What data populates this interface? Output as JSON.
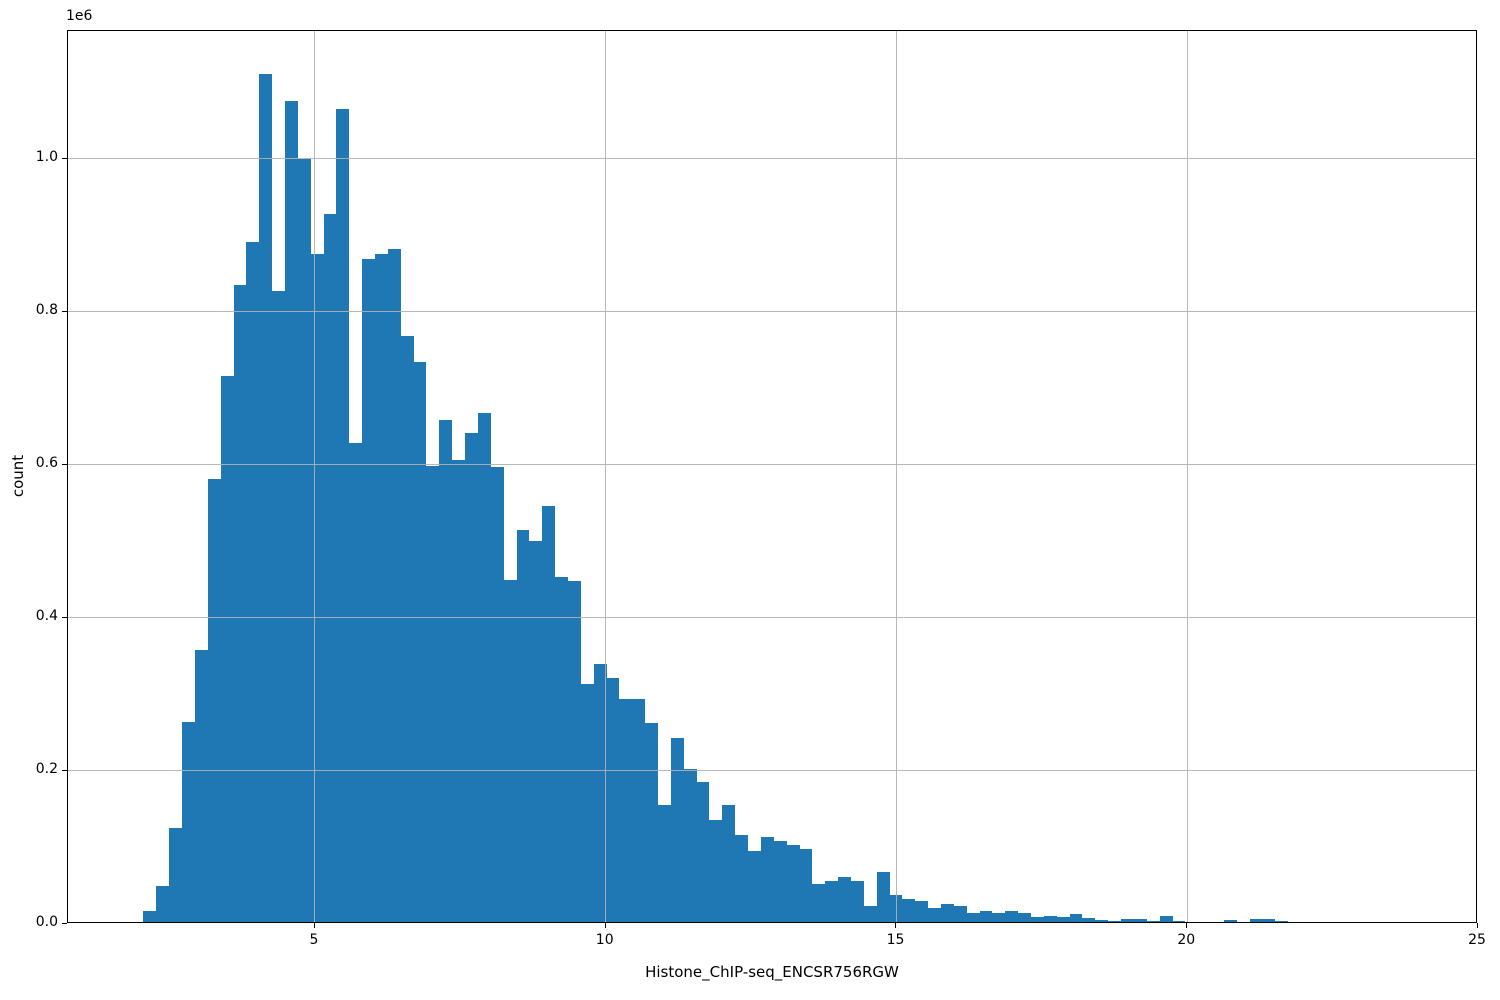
{
  "figure": {
    "background_color": "#ffffff"
  },
  "chart_data": {
    "type": "bar",
    "subtype": "histogram",
    "title": "",
    "xlabel": "Histone_ChIP-seq_ENCSR756RGW",
    "ylabel": "count",
    "y_offset_text": "1e6",
    "bar_color": "#1f77b4",
    "grid": true,
    "grid_color": "#b0b0b0",
    "spine_color": "#000000",
    "legend": null,
    "xlim": [
      0.753,
      25.0
    ],
    "ylim": [
      0,
      1167000
    ],
    "x_ticks": [
      5,
      10,
      15,
      20,
      25
    ],
    "x_tick_labels": [
      "5",
      "10",
      "15",
      "20",
      "25"
    ],
    "y_ticks": [
      0,
      200000,
      400000,
      600000,
      800000,
      1000000
    ],
    "y_tick_labels": [
      "0.0",
      "0.2",
      "0.4",
      "0.6",
      "0.8",
      "1.0"
    ],
    "bin_start": 1.83,
    "bin_width": 0.2212,
    "counts": [
      3000,
      17000,
      50000,
      125000,
      264000,
      358000,
      582000,
      716000,
      835000,
      891000,
      1111000,
      827000,
      1075000,
      1000000,
      876000,
      928000,
      1065000,
      629000,
      869000,
      876000,
      882000,
      768000,
      735000,
      599000,
      659000,
      607000,
      642000,
      668000,
      597000,
      449000,
      515000,
      501000,
      546000,
      454000,
      448000,
      314000,
      340000,
      321000,
      294000,
      294000,
      263000,
      155000,
      243000,
      203000,
      186000,
      136000,
      156000,
      116000,
      96000,
      114000,
      108000,
      103000,
      98000,
      52000,
      56000,
      62000,
      56000,
      24000,
      68000,
      38000,
      33000,
      30000,
      21000,
      26000,
      23000,
      14000,
      17000,
      14000,
      17000,
      14000,
      9000,
      11000,
      9000,
      13000,
      8000,
      5000,
      4000,
      7000,
      7000,
      4000,
      11000,
      4000,
      2000,
      3000,
      1000,
      5000,
      3000,
      7000,
      6000,
      4000,
      1000,
      2000,
      0,
      0,
      0,
      0,
      0,
      1300,
      2600,
      2600
    ]
  }
}
